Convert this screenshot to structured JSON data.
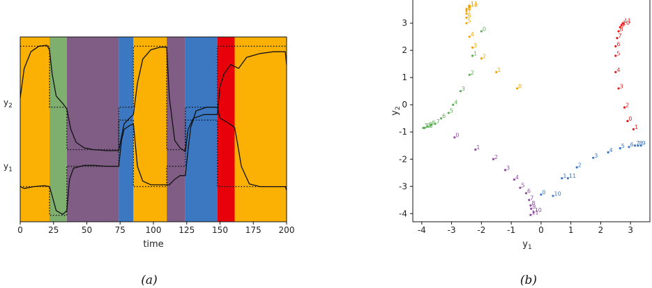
{
  "chart_data": [
    {
      "type": "line",
      "panel": "(a)",
      "caption": "(a)",
      "xlabel": "time",
      "xlim": [
        0,
        200
      ],
      "xticks": [
        0,
        25,
        50,
        75,
        100,
        125,
        150,
        175,
        200
      ],
      "ylim": [
        0,
        1
      ],
      "y_tick_labels": [
        {
          "text": "y",
          "sub": "2",
          "v": 0.645
        },
        {
          "text": "y",
          "sub": "1",
          "v": 0.3
        }
      ],
      "background_segments": [
        {
          "x0": 0,
          "x1": 22,
          "color": "#FBB104"
        },
        {
          "x0": 22,
          "x1": 35,
          "color": "#7EAF6E"
        },
        {
          "x0": 35,
          "x1": 74,
          "color": "#7F5D85"
        },
        {
          "x0": 74,
          "x1": 85,
          "color": "#3C77C2"
        },
        {
          "x0": 85,
          "x1": 110,
          "color": "#FBB104"
        },
        {
          "x0": 110,
          "x1": 124,
          "color": "#7F5D85"
        },
        {
          "x0": 124,
          "x1": 148,
          "color": "#3C77C2"
        },
        {
          "x0": 148,
          "x1": 161,
          "color": "#E8010A"
        },
        {
          "x0": 161,
          "x1": 200,
          "color": "#FBB104"
        }
      ],
      "series": [
        {
          "values": [
            [
              0,
              0.67
            ],
            [
              3,
              0.83
            ],
            [
              8,
              0.92
            ],
            [
              14,
              0.95
            ],
            [
              20,
              0.955
            ],
            [
              22,
              0.93
            ],
            [
              24,
              0.8
            ],
            [
              27,
              0.68
            ],
            [
              32,
              0.64
            ],
            [
              35,
              0.61
            ],
            [
              38,
              0.5
            ],
            [
              42,
              0.43
            ],
            [
              48,
              0.4
            ],
            [
              55,
              0.39
            ],
            [
              65,
              0.385
            ],
            [
              74,
              0.385
            ],
            [
              76,
              0.46
            ],
            [
              78,
              0.53
            ],
            [
              82,
              0.56
            ],
            [
              85,
              0.58
            ],
            [
              88,
              0.75
            ],
            [
              92,
              0.88
            ],
            [
              98,
              0.93
            ],
            [
              105,
              0.945
            ],
            [
              110,
              0.945
            ],
            [
              112,
              0.67
            ],
            [
              116,
              0.44
            ],
            [
              120,
              0.4
            ],
            [
              124,
              0.38
            ],
            [
              126,
              0.5
            ],
            [
              130,
              0.56
            ],
            [
              138,
              0.58
            ],
            [
              148,
              0.58
            ],
            [
              150,
              0.73
            ],
            [
              153,
              0.8
            ],
            [
              158,
              0.85
            ],
            [
              161,
              0.84
            ],
            [
              164,
              0.83
            ],
            [
              170,
              0.89
            ],
            [
              180,
              0.91
            ],
            [
              190,
              0.92
            ],
            [
              199,
              0.92
            ],
            [
              200,
              0.85
            ]
          ]
        },
        {
          "values": [
            [
              0,
              0.19
            ],
            [
              3,
              0.18
            ],
            [
              10,
              0.19
            ],
            [
              18,
              0.195
            ],
            [
              22,
              0.19
            ],
            [
              24,
              0.14
            ],
            [
              27,
              0.06
            ],
            [
              32,
              0.04
            ],
            [
              35,
              0.06
            ],
            [
              37,
              0.23
            ],
            [
              40,
              0.29
            ],
            [
              48,
              0.305
            ],
            [
              55,
              0.305
            ],
            [
              65,
              0.3
            ],
            [
              74,
              0.3
            ],
            [
              76,
              0.44
            ],
            [
              78,
              0.5
            ],
            [
              82,
              0.52
            ],
            [
              85,
              0.53
            ],
            [
              88,
              0.3
            ],
            [
              92,
              0.22
            ],
            [
              98,
              0.2
            ],
            [
              105,
              0.2
            ],
            [
              110,
              0.2
            ],
            [
              112,
              0.2
            ],
            [
              116,
              0.23
            ],
            [
              120,
              0.25
            ],
            [
              124,
              0.25
            ],
            [
              126,
              0.39
            ],
            [
              128,
              0.51
            ],
            [
              132,
              0.6
            ],
            [
              140,
              0.62
            ],
            [
              148,
              0.62
            ],
            [
              150,
              0.56
            ],
            [
              155,
              0.54
            ],
            [
              161,
              0.51
            ],
            [
              163,
              0.43
            ],
            [
              166,
              0.3
            ],
            [
              172,
              0.205
            ],
            [
              180,
              0.19
            ],
            [
              190,
              0.19
            ],
            [
              199,
              0.19
            ],
            [
              200,
              0.17
            ]
          ]
        }
      ],
      "reference_steps": [
        {
          "values": [
            [
              0,
              0.95
            ],
            [
              22,
              0.95
            ],
            [
              22,
              0.62
            ],
            [
              35,
              0.62
            ],
            [
              35,
              0.39
            ],
            [
              74,
              0.39
            ],
            [
              74,
              0.62
            ],
            [
              85,
              0.62
            ],
            [
              85,
              0.95
            ],
            [
              110,
              0.95
            ],
            [
              110,
              0.39
            ],
            [
              124,
              0.39
            ],
            [
              124,
              0.62
            ],
            [
              148,
              0.62
            ],
            [
              148,
              0.95
            ],
            [
              200,
              0.95
            ]
          ]
        },
        {
          "values": [
            [
              0,
              0.19
            ],
            [
              22,
              0.19
            ],
            [
              22,
              0.035
            ],
            [
              35,
              0.035
            ],
            [
              35,
              0.3
            ],
            [
              74,
              0.3
            ],
            [
              74,
              0.55
            ],
            [
              85,
              0.55
            ],
            [
              85,
              0.19
            ],
            [
              110,
              0.19
            ],
            [
              110,
              0.3
            ],
            [
              124,
              0.3
            ],
            [
              124,
              0.55
            ],
            [
              148,
              0.55
            ],
            [
              148,
              0.19
            ],
            [
              200,
              0.19
            ]
          ]
        }
      ]
    },
    {
      "type": "scatter",
      "panel": "(b)",
      "caption": "(b)",
      "xlabel": "y",
      "xlabel_sub": "1",
      "ylabel": "y",
      "ylabel_sub": "2",
      "xlim": [
        -4.3,
        3.65
      ],
      "ylim": [
        -4.3,
        3.85
      ],
      "xticks": [
        -4,
        -3,
        -2,
        -1,
        0,
        1,
        2,
        3
      ],
      "yticks": [
        -4,
        -3,
        -2,
        -1,
        0,
        1,
        2,
        3
      ],
      "series": [
        {
          "color": "#EEA500",
          "points": [
            {
              "x": -0.8,
              "y": 0.6,
              "label": "0"
            },
            {
              "x": -1.5,
              "y": 1.2,
              "label": "1"
            },
            {
              "x": -2.0,
              "y": 1.7,
              "label": "2"
            },
            {
              "x": -2.3,
              "y": 2.1,
              "label": "3"
            },
            {
              "x": -2.4,
              "y": 2.5,
              "label": "4"
            },
            {
              "x": -2.5,
              "y": 3.0,
              "label": "5"
            },
            {
              "x": -2.5,
              "y": 3.2,
              "label": "6"
            },
            {
              "x": -2.5,
              "y": 3.35,
              "label": "7"
            },
            {
              "x": -2.5,
              "y": 3.45,
              "label": "8"
            },
            {
              "x": -2.5,
              "y": 3.52,
              "label": "9"
            },
            {
              "x": -2.4,
              "y": 3.58,
              "label": "10"
            },
            {
              "x": -2.4,
              "y": 3.63,
              "label": "11"
            }
          ]
        },
        {
          "color": "#E41A1C",
          "points": [
            {
              "x": 3.1,
              "y": -0.9,
              "label": "1"
            },
            {
              "x": 2.9,
              "y": -0.6,
              "label": "0"
            },
            {
              "x": 2.8,
              "y": -0.1,
              "label": "2"
            },
            {
              "x": 2.6,
              "y": 0.6,
              "label": "3"
            },
            {
              "x": 2.5,
              "y": 1.2,
              "label": "4"
            },
            {
              "x": 2.5,
              "y": 1.8,
              "label": "5"
            },
            {
              "x": 2.5,
              "y": 2.15,
              "label": "6"
            },
            {
              "x": 2.55,
              "y": 2.45,
              "label": "7"
            },
            {
              "x": 2.6,
              "y": 2.7,
              "label": "8"
            },
            {
              "x": 2.65,
              "y": 2.85,
              "label": "9"
            },
            {
              "x": 2.7,
              "y": 2.93,
              "label": "10"
            },
            {
              "x": 2.75,
              "y": 3.0,
              "label": "11"
            }
          ]
        },
        {
          "color": "#5FAD56",
          "points": [
            {
              "x": -2.0,
              "y": 2.7,
              "label": "0"
            },
            {
              "x": -2.3,
              "y": 1.8,
              "label": "1"
            },
            {
              "x": -2.4,
              "y": 1.1,
              "label": "2"
            },
            {
              "x": -2.7,
              "y": 0.5,
              "label": "3"
            },
            {
              "x": -2.95,
              "y": 0.0,
              "label": "4"
            },
            {
              "x": -3.1,
              "y": -0.3,
              "label": "5"
            },
            {
              "x": -3.35,
              "y": -0.5,
              "label": "6"
            },
            {
              "x": -3.55,
              "y": -0.7,
              "label": "7"
            },
            {
              "x": -3.7,
              "y": -0.75,
              "label": "8"
            },
            {
              "x": -3.8,
              "y": -0.8,
              "label": "9"
            },
            {
              "x": -3.9,
              "y": -0.85,
              "label": "10"
            },
            {
              "x": -3.95,
              "y": -0.85,
              "label": "11"
            }
          ]
        },
        {
          "color": "#8E4BA0",
          "points": [
            {
              "x": -2.9,
              "y": -1.2,
              "label": "0"
            },
            {
              "x": -2.2,
              "y": -1.65,
              "label": "1"
            },
            {
              "x": -1.6,
              "y": -2.0,
              "label": "2"
            },
            {
              "x": -1.2,
              "y": -2.4,
              "label": "3"
            },
            {
              "x": -0.9,
              "y": -2.75,
              "label": "4"
            },
            {
              "x": -0.7,
              "y": -3.05,
              "label": "5"
            },
            {
              "x": -0.5,
              "y": -3.25,
              "label": "6"
            },
            {
              "x": -0.4,
              "y": -3.5,
              "label": "7"
            },
            {
              "x": -0.35,
              "y": -3.7,
              "label": "8"
            },
            {
              "x": -0.33,
              "y": -3.82,
              "label": "9"
            },
            {
              "x": -0.25,
              "y": -3.95,
              "label": "10"
            },
            {
              "x": -0.35,
              "y": -4.05,
              "label": "11"
            }
          ]
        },
        {
          "color": "#3C77C2",
          "points": [
            {
              "x": 0.0,
              "y": -3.3,
              "label": "0"
            },
            {
              "x": 0.7,
              "y": -2.7,
              "label": "1"
            },
            {
              "x": 1.2,
              "y": -2.3,
              "label": "2"
            },
            {
              "x": 1.75,
              "y": -1.95,
              "label": "3"
            },
            {
              "x": 2.25,
              "y": -1.75,
              "label": "4"
            },
            {
              "x": 2.65,
              "y": -1.6,
              "label": "5"
            },
            {
              "x": 2.95,
              "y": -1.55,
              "label": "6"
            },
            {
              "x": 3.15,
              "y": -1.5,
              "label": "7"
            },
            {
              "x": 3.25,
              "y": -1.5,
              "label": "8"
            },
            {
              "x": 3.35,
              "y": -1.5,
              "label": "9"
            },
            {
              "x": 0.4,
              "y": -3.35,
              "label": "10"
            },
            {
              "x": 0.9,
              "y": -2.7,
              "label": "11"
            }
          ]
        }
      ]
    }
  ]
}
